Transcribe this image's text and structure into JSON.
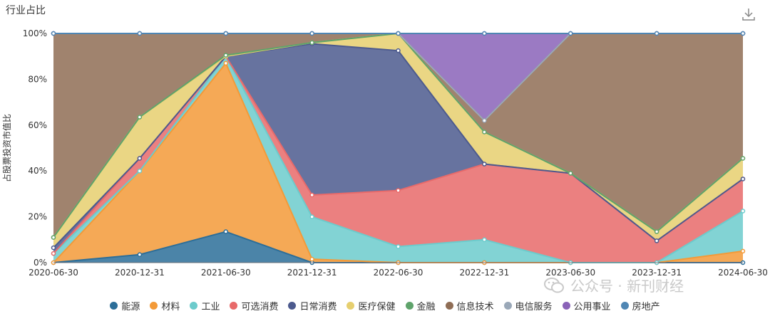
{
  "page": {
    "title": "行业占比",
    "download_icon": "download-icon",
    "watermark": "公众号 · 新刊财经",
    "watermark_icon": "wechat-icon"
  },
  "chart_data": {
    "type": "area",
    "stacked": true,
    "percent": true,
    "title": "行业占比",
    "ylabel": "占股票投资市值比",
    "xlabel": "",
    "ylim": [
      0,
      100
    ],
    "yticks": [
      "0%",
      "20%",
      "40%",
      "60%",
      "80%",
      "100%"
    ],
    "categories": [
      "2020-06-30",
      "2020-12-31",
      "2021-06-30",
      "2021-12-31",
      "2022-06-30",
      "2022-12-31",
      "2023-06-30",
      "2023-12-31",
      "2024-06-30"
    ],
    "grid": false,
    "legend_position": "bottom",
    "series": [
      {
        "name": "能源",
        "color": "#2c6e99",
        "values": [
          0,
          3.5,
          13.5,
          0,
          0,
          0,
          0,
          0,
          0
        ]
      },
      {
        "name": "材料",
        "color": "#f39a38",
        "values": [
          0,
          36.5,
          73.5,
          1.5,
          0,
          0,
          0,
          0,
          5
        ]
      },
      {
        "name": "工业",
        "color": "#6ccbcc",
        "values": [
          4,
          0,
          3,
          18.5,
          7,
          10,
          0,
          0,
          17.5
        ]
      },
      {
        "name": "可选消费",
        "color": "#e86a6a",
        "values": [
          0,
          5.5,
          0,
          9.5,
          24.5,
          33,
          39,
          9.5,
          14
        ]
      },
      {
        "name": "日常消费",
        "color": "#4c5a8e",
        "values": [
          2.5,
          0,
          0,
          66,
          61,
          0,
          0,
          0,
          0
        ]
      },
      {
        "name": "医疗保健",
        "color": "#e6cf6f",
        "values": [
          4.5,
          18,
          0,
          0.5,
          7.5,
          14,
          0,
          4,
          9
        ]
      },
      {
        "name": "金融",
        "color": "#5fa36b",
        "values": [
          0,
          0,
          0.5,
          0,
          0,
          0,
          0,
          0,
          0
        ]
      },
      {
        "name": "信息技术",
        "color": "#8f6d55",
        "values": [
          89,
          36.5,
          9.5,
          4,
          0,
          5,
          61,
          86.5,
          54.5
        ]
      },
      {
        "name": "电信服务",
        "color": "#9aa8b8",
        "values": [
          0,
          0,
          0,
          0,
          0,
          0,
          0,
          0,
          0
        ]
      },
      {
        "name": "公用事业",
        "color": "#8a63b8",
        "values": [
          0,
          0,
          0,
          0,
          0,
          38,
          0,
          0,
          0
        ]
      },
      {
        "name": "房地产",
        "color": "#4f86b3",
        "values": [
          0,
          0,
          0,
          0,
          0,
          0,
          0,
          0,
          0
        ]
      }
    ]
  }
}
